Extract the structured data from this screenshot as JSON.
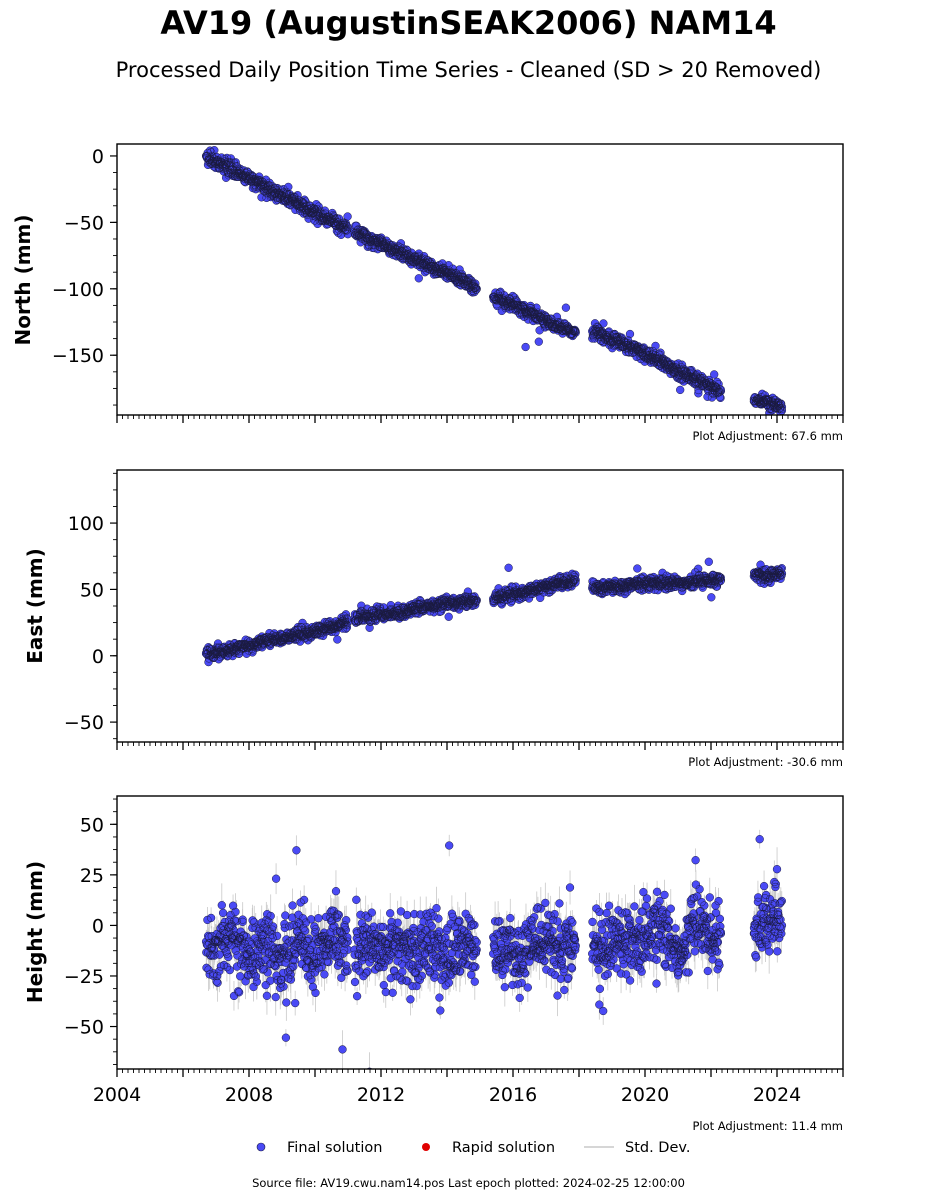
{
  "title": "AV19 (AugustinSEAK2006) NAM14",
  "subtitle": "Processed Daily Position Time Series - Cleaned (SD > 20 Removed)",
  "source_line": "Source file: AV19.cwu.nam14.pos  Last epoch plotted: 2024-02-25 12:00:00",
  "colors": {
    "final": "#4a4af5",
    "final_edge": "#1a1a40",
    "rapid": "#e00000",
    "stddev": "#c8c8c8"
  },
  "legend": {
    "final_label": "Final solution",
    "rapid_label": "Rapid solution",
    "stddev_label": "Std. Dev."
  },
  "chart_data": [
    {
      "type": "scatter",
      "panel": "north",
      "ylabel": "North (mm)",
      "adjustment_text": "Plot Adjustment: 67.6 mm",
      "xlim": [
        2004.0,
        2026.0
      ],
      "ylim": [
        -195,
        9
      ],
      "yticks": [
        0,
        -50,
        -100,
        -150
      ],
      "ytick_labels": [
        "0",
        "−50",
        "−100",
        "−150"
      ],
      "series": [
        {
          "name": "Final solution",
          "segments": [
            {
              "x": [
                2006.7,
                2007.0,
                2007.5,
                2008.0,
                2008.5,
                2009.0,
                2009.5,
                2010.0,
                2010.5,
                2011.0
              ],
              "y": [
                0,
                -5,
                -11,
                -17,
                -24,
                -30,
                -36,
                -43,
                -49,
                -55
              ]
            },
            {
              "x": [
                2011.2,
                2011.6,
                2012.0,
                2012.4,
                2012.8,
                2013.2,
                2013.6,
                2014.0,
                2014.4,
                2014.9
              ],
              "y": [
                -57,
                -62,
                -66,
                -71,
                -75,
                -80,
                -84,
                -88,
                -92,
                -100
              ]
            },
            {
              "x": [
                2015.4,
                2016.0,
                2016.5,
                2017.0,
                2017.5,
                2017.9
              ],
              "y": [
                -106,
                -112,
                -118,
                -124,
                -129,
                -133
              ]
            },
            {
              "x": [
                2018.4,
                2019.0,
                2019.5,
                2020.0,
                2020.5,
                2021.0,
                2021.5,
                2022.0,
                2022.3
              ],
              "y": [
                -132,
                -138,
                -143,
                -149,
                -155,
                -162,
                -168,
                -174,
                -177
              ]
            },
            {
              "x": [
                2023.3,
                2023.6,
                2024.0,
                2024.15
              ],
              "y": [
                -183,
                -186,
                -188,
                -189
              ]
            }
          ]
        }
      ]
    },
    {
      "type": "scatter",
      "panel": "east",
      "ylabel": "East (mm)",
      "adjustment_text": "Plot Adjustment: -30.6 mm",
      "xlim": [
        2004.0,
        2026.0
      ],
      "ylim": [
        -65,
        140
      ],
      "yticks": [
        100,
        50,
        0,
        -50
      ],
      "ytick_labels": [
        "100",
        "50",
        "0",
        "−50"
      ],
      "series": [
        {
          "name": "Final solution",
          "segments": [
            {
              "x": [
                2006.7,
                2007.5,
                2008.0,
                2008.5,
                2009.0,
                2009.5,
                2010.0,
                2010.5,
                2011.0
              ],
              "y": [
                2,
                5,
                8,
                11,
                13,
                16,
                19,
                22,
                26
              ]
            },
            {
              "x": [
                2011.2,
                2012.0,
                2012.5,
                2013.0,
                2013.5,
                2014.0,
                2014.5,
                2014.9
              ],
              "y": [
                28,
                31,
                33,
                35,
                37,
                39,
                41,
                42
              ]
            },
            {
              "x": [
                2015.4,
                2016.0,
                2016.5,
                2017.0,
                2017.5,
                2017.9
              ],
              "y": [
                43,
                46,
                49,
                52,
                55,
                57
              ]
            },
            {
              "x": [
                2018.4,
                2019.0,
                2019.5,
                2020.0,
                2020.5,
                2021.0,
                2021.5,
                2022.0,
                2022.3
              ],
              "y": [
                51,
                52,
                53,
                54,
                55,
                55,
                56,
                57,
                57
              ]
            },
            {
              "x": [
                2023.3,
                2023.7,
                2024.15
              ],
              "y": [
                60,
                61,
                62
              ]
            }
          ]
        }
      ]
    },
    {
      "type": "scatter",
      "panel": "height",
      "ylabel": "Height (mm)",
      "adjustment_text": "Plot Adjustment: 11.4 mm",
      "xlim": [
        2004.0,
        2026.0
      ],
      "ylim": [
        -71,
        64
      ],
      "yticks": [
        50,
        25,
        0,
        -25,
        -50
      ],
      "ytick_labels": [
        "50",
        "25",
        "0",
        "−25",
        "−50"
      ],
      "xticks": [
        2004,
        2008,
        2012,
        2016,
        2020,
        2024
      ],
      "xtick_labels": [
        "2004",
        "2008",
        "2012",
        "2016",
        "2020",
        "2024"
      ],
      "series": [
        {
          "name": "Final solution",
          "segments": [
            {
              "x": [
                2006.7,
                2007.0,
                2007.5,
                2008.0,
                2008.5,
                2009.0,
                2009.5,
                2010.0,
                2010.5,
                2011.0
              ],
              "y": [
                -8,
                -14,
                -4,
                -16,
                -8,
                -18,
                -6,
                -14,
                -4,
                -12
              ]
            },
            {
              "x": [
                2011.2,
                2011.6,
                2012.0,
                2012.5,
                2013.0,
                2013.5,
                2014.0,
                2014.5,
                2014.9
              ],
              "y": [
                -12,
                -8,
                -16,
                -10,
                -14,
                -10,
                -16,
                -8,
                -12
              ]
            },
            {
              "x": [
                2015.4,
                2015.8,
                2016.2,
                2016.6,
                2017.0,
                2017.5,
                2017.9
              ],
              "y": [
                -14,
                -8,
                -18,
                -6,
                -12,
                -8,
                -10
              ]
            },
            {
              "x": [
                2018.4,
                2019.0,
                2019.5,
                2020.0,
                2020.5,
                2021.0,
                2021.5,
                2022.0,
                2022.3
              ],
              "y": [
                -14,
                -10,
                -6,
                -8,
                0,
                -18,
                4,
                -8,
                -4
              ]
            },
            {
              "x": [
                2023.3,
                2023.7,
                2024.15
              ],
              "y": [
                -4,
                2,
                0
              ]
            }
          ]
        }
      ]
    }
  ]
}
